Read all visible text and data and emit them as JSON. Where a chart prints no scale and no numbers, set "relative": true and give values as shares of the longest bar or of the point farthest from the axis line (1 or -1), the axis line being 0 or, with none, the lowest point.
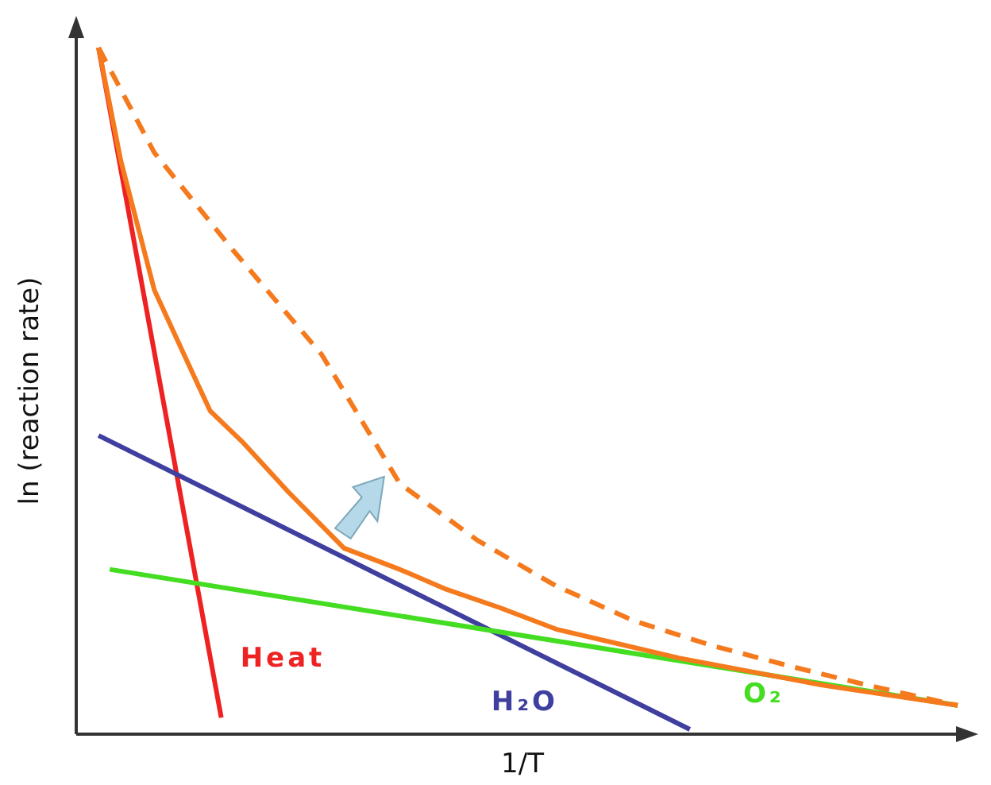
{
  "chart_data": {
    "type": "line",
    "relative": true,
    "xlabel": "1/T",
    "ylabel": "ln (reaction rate)",
    "marker": "none",
    "categories": [
      null,
      null,
      null,
      null,
      null,
      null,
      null,
      null,
      null,
      null,
      null,
      null,
      null,
      null,
      null,
      null,
      null,
      null,
      null,
      null,
      null,
      null,
      null,
      null,
      null,
      null,
      null,
      null,
      null,
      null,
      null,
      null,
      null,
      null,
      null,
      null,
      null,
      null,
      null,
      null,
      null,
      null,
      null,
      null,
      null,
      null,
      null,
      null,
      null,
      null,
      null,
      null,
      null,
      null,
      null,
      null,
      null,
      null,
      null,
      null,
      null,
      null,
      null,
      null,
      null,
      null,
      null,
      null,
      null,
      null,
      null,
      null,
      null,
      null,
      null,
      null,
      null,
      null,
      null,
      null,
      null
    ],
    "series": [
      {
        "name": "Heat",
        "color": "#ee2222",
        "values": [
          null,
          null,
          1,
          null,
          null,
          null,
          null,
          null,
          null,
          null,
          null,
          null,
          null,
          0.024,
          null,
          null,
          null,
          null,
          null,
          null,
          null,
          null,
          null,
          null,
          null,
          null,
          null,
          null,
          null,
          null,
          null,
          null,
          null,
          null,
          null,
          null,
          null,
          null,
          null,
          null,
          null,
          null,
          null,
          null,
          null,
          null,
          null,
          null,
          null,
          null,
          null,
          null,
          null,
          null,
          null,
          null,
          null,
          null,
          null,
          null,
          null,
          null,
          null,
          null,
          null,
          null,
          null,
          null,
          null,
          null,
          null,
          null,
          null,
          null,
          null,
          null,
          null,
          null,
          null,
          null,
          null
        ]
      },
      {
        "name": "H₂O",
        "color": "#3f3f9f",
        "values": [
          null,
          null,
          0.435,
          null,
          null,
          null,
          null,
          null,
          null,
          null,
          null,
          null,
          null,
          null,
          null,
          null,
          null,
          null,
          null,
          null,
          null,
          null,
          null,
          null,
          null,
          null,
          null,
          null,
          null,
          null,
          null,
          null,
          null,
          null,
          null,
          null,
          null,
          null,
          null,
          null,
          null,
          null,
          null,
          null,
          null,
          null,
          null,
          null,
          null,
          null,
          null,
          null,
          null,
          null,
          null,
          0.007,
          null,
          null,
          null,
          null,
          null,
          null,
          null,
          null,
          null,
          null,
          null,
          null,
          null,
          null,
          null,
          null,
          null,
          null,
          null,
          null,
          null,
          null,
          null,
          null,
          null
        ]
      },
      {
        "name": "O₂",
        "color": "#44dd22",
        "values": [
          null,
          null,
          null,
          0.24,
          null,
          null,
          null,
          null,
          null,
          null,
          null,
          null,
          null,
          null,
          null,
          null,
          null,
          null,
          null,
          null,
          null,
          null,
          null,
          null,
          null,
          null,
          null,
          null,
          null,
          null,
          null,
          null,
          null,
          null,
          null,
          null,
          null,
          null,
          null,
          null,
          null,
          null,
          null,
          null,
          null,
          null,
          null,
          null,
          null,
          null,
          null,
          null,
          null,
          null,
          null,
          null,
          null,
          null,
          null,
          null,
          null,
          null,
          null,
          null,
          null,
          null,
          null,
          null,
          null,
          null,
          null,
          null,
          null,
          null,
          null,
          null,
          null,
          null,
          null,
          0.042,
          null
        ]
      },
      {
        "color": "#f57a1e",
        "values": [
          null,
          null,
          1,
          null,
          0.835,
          null,
          null,
          0.647,
          null,
          null,
          0.541,
          null,
          0.471,
          null,
          null,
          0.424,
          null,
          null,
          null,
          0.353,
          null,
          null,
          null,
          null,
          0.271,
          null,
          null,
          null,
          null,
          0.24,
          null,
          null,
          null,
          0.212,
          null,
          null,
          null,
          null,
          0.184,
          null,
          null,
          null,
          null,
          0.153,
          null,
          null,
          null,
          null,
          null,
          null,
          null,
          null,
          null,
          null,
          0.111,
          null,
          null,
          null,
          null,
          null,
          null,
          null,
          null,
          null,
          null,
          null,
          null,
          0.071,
          null,
          null,
          null,
          null,
          null,
          null,
          null,
          null,
          null,
          null,
          null,
          0.042,
          null
        ]
      },
      {
        "color": "#f57a1e",
        "line_style": "dashed",
        "values": [
          null,
          null,
          1,
          null,
          null,
          null,
          null,
          0.847,
          null,
          null,
          null,
          null,
          null,
          null,
          0.706,
          null,
          null,
          null,
          null,
          null,
          null,
          null,
          0.553,
          null,
          null,
          null,
          null,
          null,
          null,
          0.365,
          null,
          null,
          null,
          null,
          null,
          null,
          0.282,
          null,
          null,
          null,
          null,
          null,
          null,
          0.216,
          null,
          null,
          null,
          null,
          null,
          null,
          0.165,
          null,
          null,
          null,
          null,
          null,
          null,
          0.129,
          null,
          null,
          null,
          null,
          null,
          null,
          0.099,
          null,
          null,
          null,
          null,
          null,
          null,
          0.071,
          null,
          null,
          null,
          null,
          null,
          null,
          null,
          0.042,
          null
        ]
      }
    ]
  }
}
